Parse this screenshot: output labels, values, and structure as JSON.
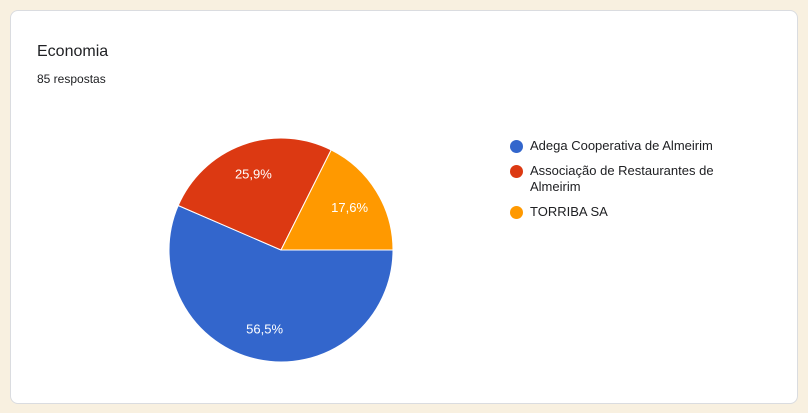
{
  "page": {
    "background_color": "#f8f0e0"
  },
  "card": {
    "title": "Economia",
    "subtitle": "85 respostas",
    "background_color": "#ffffff",
    "border_color": "#dadce0"
  },
  "chart_data": {
    "type": "pie",
    "title": "Economia",
    "responses_text": "85 respostas",
    "start_angle_deg": 0,
    "direction": "clockwise",
    "legend_position": "right",
    "slice_label_color": "#ffffff",
    "slice_separator_color": "#ffffff",
    "slices": [
      {
        "label": "Adega Cooperativa de Almeirim",
        "value_pct": 56.5,
        "display": "56,5%",
        "color": "#3366cc"
      },
      {
        "label": "Associação de Restaurantes de Almeirim",
        "value_pct": 25.9,
        "display": "25,9%",
        "color": "#dc3912"
      },
      {
        "label": "TORRIBA SA",
        "value_pct": 17.6,
        "display": "17,6%",
        "color": "#ff9900"
      }
    ]
  }
}
